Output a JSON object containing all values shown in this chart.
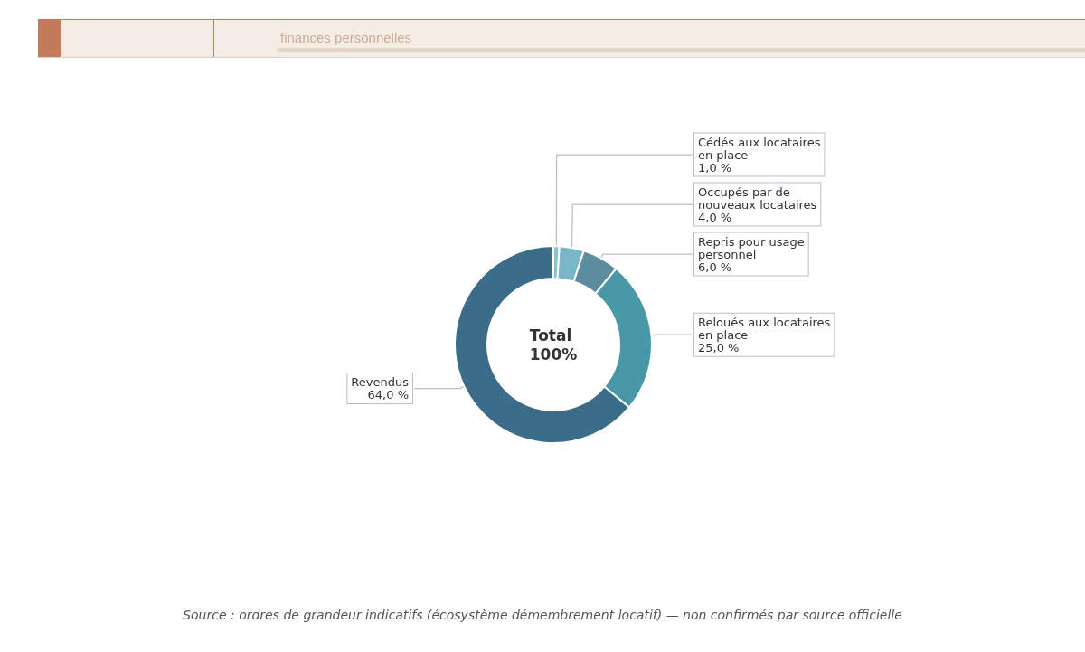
{
  "chart_data": {
    "type": "donut",
    "subtitle": "finances personnelles",
    "categories": [
      "Cédés aux locataires en place",
      "Occupés par de nouveaux locataires",
      "Repris pour usage personnel",
      "Reloués aux locataires en place",
      "Revendus"
    ],
    "values": [
      1,
      4,
      6,
      25,
      64
    ],
    "colors": [
      "#8cc3d3",
      "#7ab6ca",
      "#5b8d9f",
      "#4998a8",
      "#3b6c89"
    ],
    "value_labels": [
      "1,0 %",
      "4,0 %",
      "6,0 %",
      "25,0 %",
      "64,0 %"
    ],
    "annotations": [
      "Total 100%",
      "Source : ordres de grandeur indicatifs (écosystème démembrement locatif) — non confirmés par source officielle"
    ]
  }
}
